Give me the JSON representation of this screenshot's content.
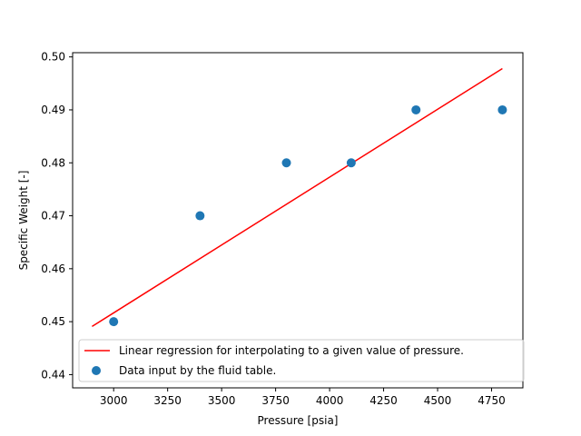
{
  "chart_data": {
    "type": "scatter",
    "xlabel": "Pressure [psia]",
    "ylabel": "Specific Weight [-]",
    "xlim": [
      2810,
      4895
    ],
    "ylim": [
      0.4375,
      0.5008
    ],
    "x_ticks": [
      3000,
      3250,
      3500,
      3750,
      4000,
      4250,
      4500,
      4750
    ],
    "x_tick_labels": [
      "3000",
      "3250",
      "3500",
      "3750",
      "4000",
      "4250",
      "4500",
      "4750"
    ],
    "y_ticks": [
      0.44,
      0.45,
      0.46,
      0.47,
      0.48,
      0.49,
      0.5
    ],
    "y_tick_labels": [
      "0.44",
      "0.45",
      "0.46",
      "0.47",
      "0.48",
      "0.49",
      "0.50"
    ],
    "grid": false,
    "legend_position": "bottom-right",
    "series": [
      {
        "name": "Linear regression for interpolating to a given value of pressure.",
        "type": "line",
        "color": "#ff0000",
        "x": [
          2900,
          4800
        ],
        "y": [
          0.4491,
          0.4978
        ]
      },
      {
        "name": "Data input by the fluid table.",
        "type": "scatter",
        "color": "#1f77b4",
        "x": [
          3000,
          3400,
          3800,
          4100,
          4400,
          4800
        ],
        "y": [
          0.45,
          0.47,
          0.48,
          0.48,
          0.49,
          0.49
        ]
      }
    ]
  }
}
